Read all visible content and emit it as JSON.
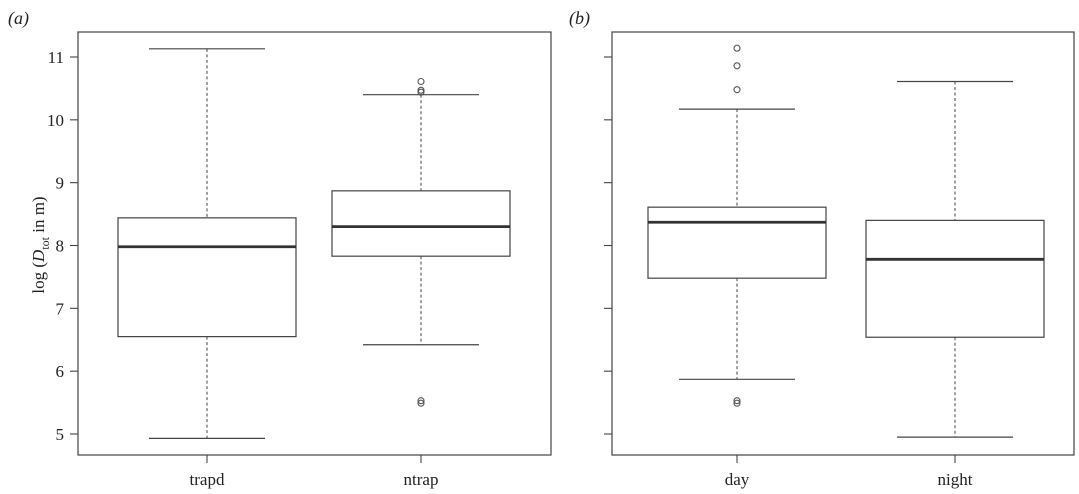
{
  "y_axis_label": {
    "prefix": "log (",
    "var": "D",
    "sub": "tot",
    "suffix": " in m)"
  },
  "chart_data": [
    {
      "type": "box",
      "panel_label": "(a)",
      "categories": [
        "trapd",
        "ntrap"
      ],
      "ylim": [
        4.8,
        11.35
      ],
      "yticks": [
        5,
        6,
        7,
        8,
        9,
        10,
        11
      ],
      "boxes": [
        {
          "category": "trapd",
          "whisker_low": 4.93,
          "q1": 6.55,
          "median": 7.98,
          "q3": 8.44,
          "whisker_high": 11.13,
          "outliers": []
        },
        {
          "category": "ntrap",
          "whisker_low": 6.42,
          "q1": 7.83,
          "median": 8.3,
          "q3": 8.87,
          "whisker_high": 10.4,
          "outliers": [
            5.49,
            5.53,
            10.44,
            10.47,
            10.61
          ]
        }
      ]
    },
    {
      "type": "box",
      "panel_label": "(b)",
      "categories": [
        "day",
        "night"
      ],
      "ylim": [
        4.8,
        11.35
      ],
      "yticks": [
        5,
        6,
        7,
        8,
        9,
        10,
        11
      ],
      "boxes": [
        {
          "category": "day",
          "whisker_low": 5.87,
          "q1": 7.48,
          "median": 8.37,
          "q3": 8.61,
          "whisker_high": 10.17,
          "outliers": [
            5.49,
            5.53,
            10.48,
            10.86,
            11.14
          ]
        },
        {
          "category": "night",
          "whisker_low": 4.95,
          "q1": 6.54,
          "median": 7.78,
          "q3": 8.4,
          "whisker_high": 10.61,
          "outliers": []
        }
      ]
    }
  ]
}
